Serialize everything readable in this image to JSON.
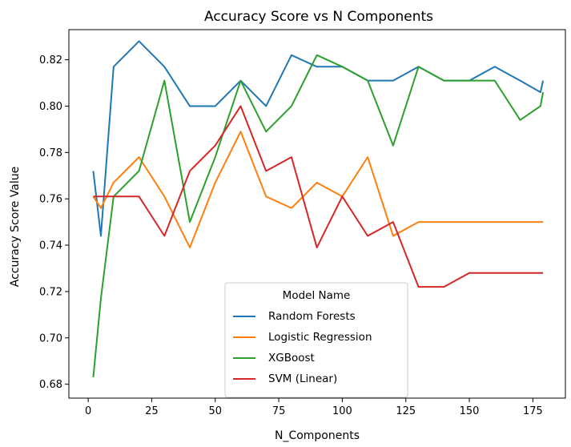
{
  "chart_data": {
    "type": "line",
    "title": "Accuracy Score vs N Components",
    "xlabel": "N_Components",
    "ylabel": "Accuracy Score Value",
    "xlim": [
      -7.6,
      187.8
    ],
    "ylim": [
      0.674,
      0.833
    ],
    "xticks": [
      0,
      25,
      50,
      75,
      100,
      125,
      150,
      175
    ],
    "yticks": [
      0.68,
      0.7,
      0.72,
      0.74,
      0.76,
      0.78,
      0.8,
      0.82
    ],
    "ytick_labels": [
      "0.68",
      "0.70",
      "0.72",
      "0.74",
      "0.76",
      "0.78",
      "0.80",
      "0.82"
    ],
    "grid": false,
    "legend": {
      "title": "Model Name",
      "placement": "lower-center"
    },
    "x": [
      2,
      5,
      10,
      20,
      30,
      40,
      50,
      60,
      70,
      80,
      90,
      100,
      110,
      120,
      130,
      140,
      150,
      160,
      170,
      178,
      179
    ],
    "series": [
      {
        "name": "Random Forests",
        "color": "#1f77b4",
        "values": [
          0.772,
          0.744,
          0.817,
          0.828,
          0.817,
          0.8,
          0.8,
          0.811,
          0.8,
          0.822,
          0.817,
          0.817,
          0.811,
          0.811,
          0.817,
          0.811,
          0.811,
          0.817,
          0.811,
          0.806,
          0.811
        ]
      },
      {
        "name": "Logistic Regression",
        "color": "#ff7f0e",
        "values": [
          0.761,
          0.756,
          0.767,
          0.778,
          0.761,
          0.739,
          0.767,
          0.789,
          0.761,
          0.756,
          0.767,
          0.761,
          0.778,
          0.744,
          0.75,
          0.75,
          0.75,
          0.75,
          0.75,
          0.75,
          0.75
        ]
      },
      {
        "name": "XGBoost",
        "color": "#2ca02c",
        "values": [
          0.683,
          0.717,
          0.761,
          0.772,
          0.811,
          0.75,
          0.778,
          0.811,
          0.789,
          0.8,
          0.822,
          0.817,
          0.811,
          0.783,
          0.817,
          0.811,
          0.811,
          0.811,
          0.794,
          0.8,
          0.806
        ]
      },
      {
        "name": "SVM (Linear)",
        "color": "#d62728",
        "values": [
          0.761,
          0.761,
          0.761,
          0.761,
          0.744,
          0.772,
          0.783,
          0.8,
          0.772,
          0.778,
          0.739,
          0.761,
          0.744,
          0.75,
          0.722,
          0.722,
          0.728,
          0.728,
          0.728,
          0.728,
          0.728
        ]
      }
    ]
  }
}
